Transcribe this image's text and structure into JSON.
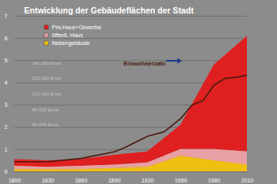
{
  "chart_data": {
    "type": "area",
    "title": "Entwicklung der Gebäudeflächen der Stadt",
    "stacked": true,
    "grid": true,
    "legend": "top-left",
    "x": [
      1800,
      1830,
      1860,
      1890,
      1920,
      1950,
      1980,
      2010
    ],
    "xlim": [
      1800,
      2010
    ],
    "xticks": [
      1800,
      1830,
      1860,
      1890,
      1920,
      1950,
      1980,
      2010
    ],
    "ylim": [
      0,
      7
    ],
    "yticks": [
      0,
      1,
      2,
      3,
      4,
      5,
      6,
      7
    ],
    "y2lim": [
      0,
      200000
    ],
    "y2ticks": [
      {
        "value": 60000,
        "label": "60.000 Einw."
      },
      {
        "value": 80000,
        "label": "80.000 Einw."
      },
      {
        "value": 100000,
        "label": "100.000 Einw."
      },
      {
        "value": 120000,
        "label": "120.000 Einw."
      },
      {
        "value": 140000,
        "label": "140.000 Einw."
      }
    ],
    "series": [
      {
        "name": "Priv.Haus+Gewerbe",
        "color": "#e02020",
        "values": [
          0.3,
          0.3,
          0.3,
          0.45,
          0.5,
          1.1,
          3.8,
          5.2
        ]
      },
      {
        "name": "öffentl. Haus",
        "color": "#e8a0a4",
        "values": [
          0.15,
          0.1,
          0.15,
          0.15,
          0.2,
          0.3,
          0.5,
          0.6
        ]
      },
      {
        "name": "Nebengebäude",
        "color": "#f0c010",
        "values": [
          0.1,
          0.1,
          0.1,
          0.15,
          0.2,
          0.7,
          0.5,
          0.3
        ]
      },
      {
        "name": "Einwohnerzahl",
        "type": "line",
        "axis": "y2",
        "color": "#4a1a10",
        "x": [
          1800,
          1830,
          1860,
          1890,
          1900,
          1920,
          1935,
          1950,
          1960,
          1970,
          1980,
          1990,
          2000,
          2010
        ],
        "values": [
          12900,
          12900,
          17100,
          25700,
          31400,
          45700,
          51400,
          68600,
          85700,
          91400,
          111400,
          120000,
          121400,
          124300
        ]
      }
    ]
  }
}
